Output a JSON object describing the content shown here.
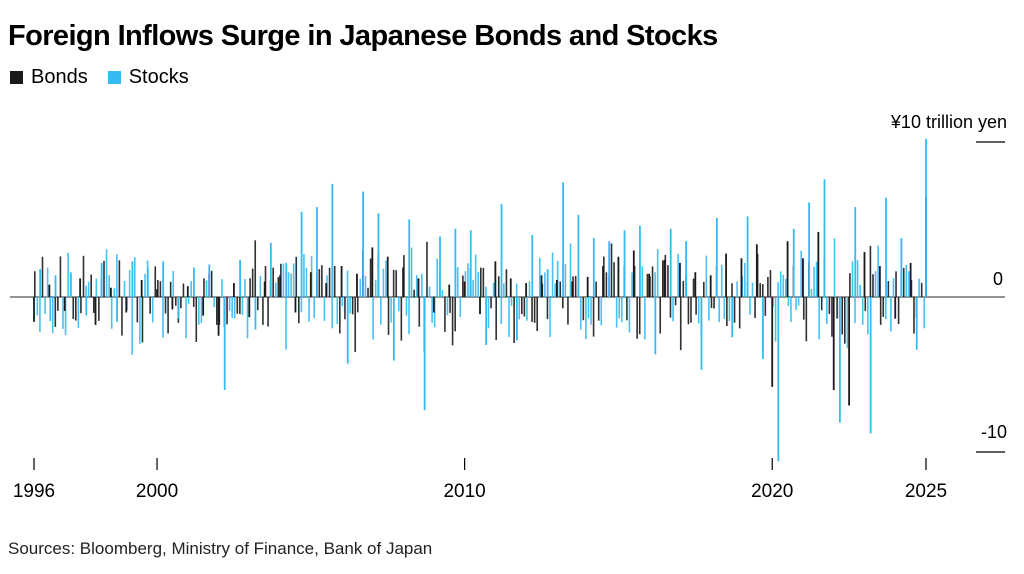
{
  "title": "Foreign Inflows Surge in Japanese Bonds and Stocks",
  "source": "Sources: Bloomberg, Ministry of Finance, Bank of Japan",
  "colors": {
    "bonds": "#1a1a1a",
    "stocks": "#33bbf2",
    "axis": "#000000"
  },
  "chart_data": {
    "type": "bar",
    "x_range": [
      1996,
      2025.8
    ],
    "ylim": [
      -11.5,
      11
    ],
    "y_ticks": [
      {
        "value": 10,
        "label": "¥10 trillion yen"
      },
      {
        "value": 0,
        "label": "0"
      },
      {
        "value": -10,
        "label": "-10"
      }
    ],
    "x_ticks": [
      {
        "value": 1996,
        "label": "1996"
      },
      {
        "value": 2000,
        "label": "2000"
      },
      {
        "value": 2010,
        "label": "2010"
      },
      {
        "value": 2020,
        "label": "2020"
      },
      {
        "value": 2025,
        "label": "2025"
      }
    ],
    "legend": [
      "Bonds",
      "Stocks"
    ],
    "legend_position": "top-left",
    "series": [
      {
        "name": "Bonds",
        "x": [
          1996,
          1996.5,
          1997,
          1997.5,
          1998,
          1998.5,
          1999,
          1999.5,
          2000,
          2000.5,
          2001,
          2001.5,
          2002,
          2002.5,
          2003,
          2003.5,
          2004,
          2004.5,
          2005,
          2005.5,
          2006,
          2006.5,
          2007,
          2007.5,
          2008,
          2008.5,
          2009,
          2009.5,
          2010,
          2010.5,
          2011,
          2011.5,
          2012,
          2012.5,
          2013,
          2013.5,
          2014,
          2014.5,
          2015,
          2015.5,
          2016,
          2016.5,
          2017,
          2017.5,
          2018,
          2018.5,
          2019,
          2019.5,
          2020,
          2020.5,
          2021,
          2021.5,
          2022,
          2022.5,
          2023,
          2023.5,
          2024,
          2024.5,
          2025
        ],
        "values": [
          -1.6,
          0.8,
          -0.9,
          1.2,
          -1.8,
          0.6,
          -1.0,
          1.1,
          0.5,
          -0.8,
          0.7,
          -1.2,
          -2.5,
          0.9,
          -1.3,
          1.0,
          1.4,
          -1.0,
          1.6,
          0.9,
          2.0,
          1.5,
          3.2,
          2.6,
          1.9,
          1.2,
          -1.0,
          0.8,
          1.0,
          -1.1,
          2.3,
          1.2,
          0.9,
          1.4,
          1.1,
          1.0,
          1.3,
          2.0,
          2.6,
          3.0,
          1.5,
          2.4,
          2.2,
          1.6,
          1.4,
          2.8,
          2.5,
          3.4,
          -5.8,
          3.6,
          2.5,
          4.2,
          -6.0,
          -7.0,
          2.9,
          2.0,
          -1.4,
          2.2,
          6.4
        ]
      },
      {
        "name": "Stocks",
        "x": [
          1996.2,
          1996.7,
          1997.2,
          1997.7,
          1998.2,
          1998.7,
          1999.2,
          1999.7,
          2000.2,
          2000.7,
          2001.2,
          2001.7,
          2002.2,
          2002.7,
          2003.2,
          2003.7,
          2004.2,
          2004.7,
          2005.2,
          2005.7,
          2006.2,
          2006.7,
          2007.2,
          2007.7,
          2008.2,
          2008.7,
          2009.2,
          2009.7,
          2010.2,
          2010.7,
          2011.2,
          2011.7,
          2012.2,
          2012.7,
          2013.2,
          2013.7,
          2014.2,
          2014.7,
          2015.2,
          2015.7,
          2016.2,
          2016.7,
          2017.2,
          2017.7,
          2018.2,
          2018.7,
          2019.2,
          2019.7,
          2020.2,
          2020.7,
          2021.2,
          2021.7,
          2022.2,
          2022.7,
          2023.2,
          2023.7,
          2024.2,
          2024.7,
          2025
        ],
        "values": [
          1.8,
          1.4,
          1.5,
          -1.2,
          2.2,
          -1.6,
          2.3,
          1.9,
          2.3,
          -1.4,
          1.9,
          2.1,
          -6.0,
          2.4,
          -2.1,
          3.5,
          2.2,
          5.5,
          5.8,
          7.3,
          -4.3,
          6.8,
          5.4,
          -4.1,
          5.0,
          -7.3,
          3.9,
          4.4,
          4.3,
          -3.1,
          6.0,
          -2.8,
          4.0,
          1.8,
          7.4,
          5.3,
          3.8,
          3.6,
          4.3,
          4.6,
          -3.7,
          4.4,
          3.6,
          -4.7,
          5.1,
          -2.6,
          5.2,
          -4.0,
          -10.6,
          4.4,
          6.1,
          7.6,
          -8.1,
          5.8,
          -8.8,
          6.4,
          3.8,
          -3.4,
          10.2
        ]
      }
    ]
  }
}
